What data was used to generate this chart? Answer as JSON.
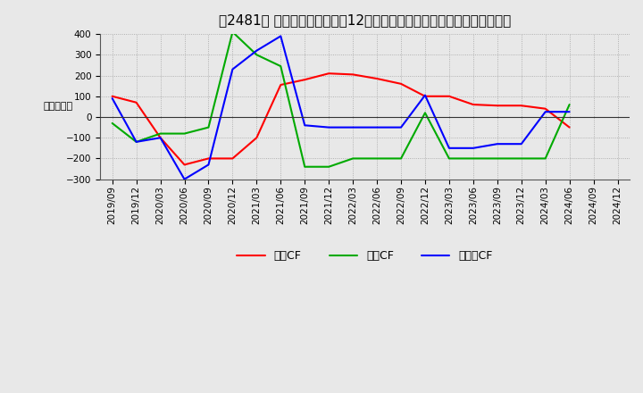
{
  "title": "【2481】 キャッシュフローの12か月移動合計の対前年同期増減額の推移",
  "ylabel": "（百万円）",
  "background_color": "#e8e8e8",
  "plot_bg_color": "#e8e8e8",
  "x_labels": [
    "2019/09",
    "2019/12",
    "2020/03",
    "2020/06",
    "2020/09",
    "2020/12",
    "2021/03",
    "2021/06",
    "2021/09",
    "2021/12",
    "2022/03",
    "2022/06",
    "2022/09",
    "2022/12",
    "2023/03",
    "2023/06",
    "2023/09",
    "2023/12",
    "2024/03",
    "2024/06",
    "2024/09",
    "2024/12"
  ],
  "operating_cf": [
    100,
    70,
    -100,
    -230,
    -200,
    -200,
    -100,
    155,
    180,
    210,
    205,
    185,
    160,
    100,
    100,
    60,
    55,
    55,
    40,
    -50,
    null,
    null
  ],
  "investing_cf": [
    -30,
    -120,
    -80,
    -80,
    -50,
    410,
    300,
    245,
    -240,
    -240,
    -200,
    -200,
    -200,
    20,
    -200,
    -200,
    -200,
    -200,
    -200,
    60,
    null,
    null
  ],
  "free_cf": [
    90,
    -120,
    -100,
    -300,
    -230,
    230,
    320,
    390,
    -40,
    -50,
    -50,
    -50,
    -50,
    105,
    -150,
    -150,
    -130,
    -130,
    25,
    25,
    null,
    null
  ],
  "ylim": [
    -300,
    400
  ],
  "yticks": [
    -300,
    -200,
    -100,
    0,
    100,
    200,
    300,
    400
  ],
  "line_colors": {
    "operating": "#ff0000",
    "investing": "#00aa00",
    "free": "#0000ff"
  },
  "legend_labels": {
    "operating": "営業CF",
    "investing": "投資CF",
    "free": "フリーCF"
  },
  "title_fontsize": 11,
  "tick_fontsize": 7.5,
  "ylabel_fontsize": 8
}
